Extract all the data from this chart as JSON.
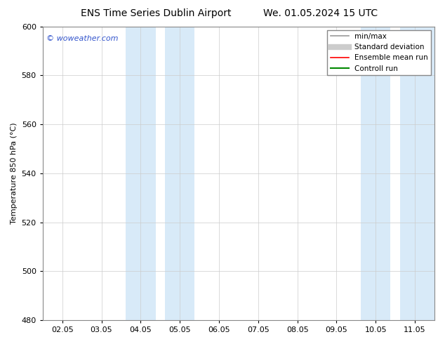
{
  "title_left": "ENS Time Series Dublin Airport",
  "title_right": "We. 01.05.2024 15 UTC",
  "ylabel": "Temperature 850 hPa (°C)",
  "ylim": [
    480,
    600
  ],
  "yticks": [
    480,
    500,
    520,
    540,
    560,
    580,
    600
  ],
  "xtick_labels": [
    "02.05",
    "03.05",
    "04.05",
    "05.05",
    "06.05",
    "07.05",
    "08.05",
    "09.05",
    "10.05",
    "11.05"
  ],
  "watermark": "© woweather.com",
  "watermark_color": "#3355cc",
  "shaded_color": "#d8eaf8",
  "legend_items": [
    {
      "label": "min/max",
      "color": "#999999",
      "lw": 1.2
    },
    {
      "label": "Standard deviation",
      "color": "#cccccc",
      "lw": 6
    },
    {
      "label": "Ensemble mean run",
      "color": "#ff0000",
      "lw": 1.2
    },
    {
      "label": "Controll run",
      "color": "#008800",
      "lw": 1.5
    }
  ],
  "background_color": "#ffffff",
  "plot_bg_color": "#ffffff",
  "title_fontsize": 10,
  "axis_label_fontsize": 8,
  "tick_fontsize": 8,
  "legend_fontsize": 7.5,
  "watermark_fontsize": 8
}
